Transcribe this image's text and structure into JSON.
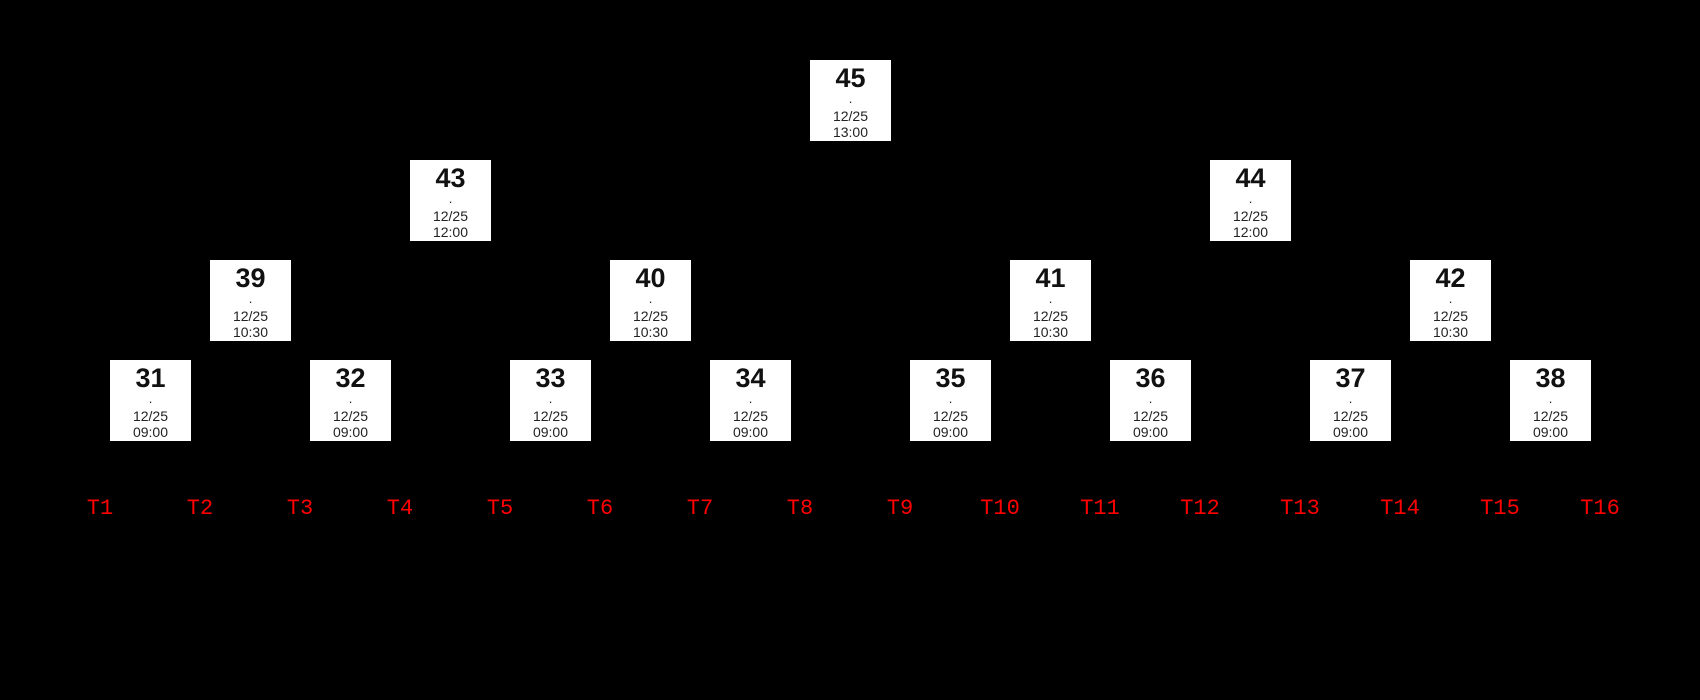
{
  "canvas": {
    "background_color": "#000000",
    "node_fill_color": "#ffffff",
    "node_text_color": "#111111",
    "team_label_color": "#ff0000"
  },
  "bracket": {
    "type": "single-elimination-tree",
    "separator": ".",
    "rounds_times": [
      "09:00",
      "10:30",
      "12:00",
      "13:00"
    ],
    "date": "12/25",
    "nodes": [
      {
        "id": "31",
        "date": "12/25",
        "time": "09:00",
        "level": 1,
        "slot": 0
      },
      {
        "id": "32",
        "date": "12/25",
        "time": "09:00",
        "level": 1,
        "slot": 1
      },
      {
        "id": "33",
        "date": "12/25",
        "time": "09:00",
        "level": 1,
        "slot": 2
      },
      {
        "id": "34",
        "date": "12/25",
        "time": "09:00",
        "level": 1,
        "slot": 3
      },
      {
        "id": "35",
        "date": "12/25",
        "time": "09:00",
        "level": 1,
        "slot": 4
      },
      {
        "id": "36",
        "date": "12/25",
        "time": "09:00",
        "level": 1,
        "slot": 5
      },
      {
        "id": "37",
        "date": "12/25",
        "time": "09:00",
        "level": 1,
        "slot": 6
      },
      {
        "id": "38",
        "date": "12/25",
        "time": "09:00",
        "level": 1,
        "slot": 7
      },
      {
        "id": "39",
        "date": "12/25",
        "time": "10:30",
        "level": 2,
        "slot": 0
      },
      {
        "id": "40",
        "date": "12/25",
        "time": "10:30",
        "level": 2,
        "slot": 1
      },
      {
        "id": "41",
        "date": "12/25",
        "time": "10:30",
        "level": 2,
        "slot": 2
      },
      {
        "id": "42",
        "date": "12/25",
        "time": "10:30",
        "level": 2,
        "slot": 3
      },
      {
        "id": "43",
        "date": "12/25",
        "time": "12:00",
        "level": 3,
        "slot": 0
      },
      {
        "id": "44",
        "date": "12/25",
        "time": "12:00",
        "level": 3,
        "slot": 1
      },
      {
        "id": "45",
        "date": "12/25",
        "time": "13:00",
        "level": 4,
        "slot": 0
      }
    ]
  },
  "teams": {
    "labels": [
      "T1",
      "T2",
      "T3",
      "T4",
      "T5",
      "T6",
      "T7",
      "T8",
      "T9",
      "T10",
      "T11",
      "T12",
      "T13",
      "T14",
      "T15",
      "T16"
    ]
  }
}
